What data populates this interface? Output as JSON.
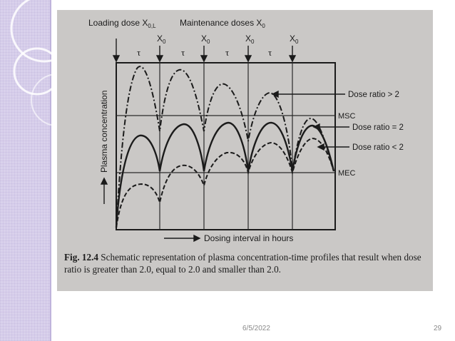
{
  "slide": {
    "date": "6/5/2022",
    "page_number": "29"
  },
  "figure": {
    "top_label_loading": "Loading dose X",
    "top_label_loading_sub": "0,L",
    "top_label_maintenance": "Maintenance doses X",
    "top_label_maintenance_sub": "0",
    "dose_marker": "X",
    "dose_marker_sub": "0",
    "tau_symbol": "τ",
    "y_axis_label": "Plasma concentration",
    "x_axis_label": "Dosing interval in hours",
    "msc_label": "MSC",
    "mec_label": "MEC",
    "legend": {
      "gt": "Dose ratio > 2",
      "eq": "Dose ratio = 2",
      "lt": "Dose ratio < 2"
    },
    "caption_fig": "Fig. 12.4",
    "caption_text": "Schematic representation of plasma concentration-time profiles that result when dose ratio is greater than 2.0, equal to 2.0 and smaller than 2.0."
  },
  "colors": {
    "side_panel": "#d9d1ec",
    "photo_bg": "#cac8c6",
    "ink": "#1b1b1b"
  }
}
